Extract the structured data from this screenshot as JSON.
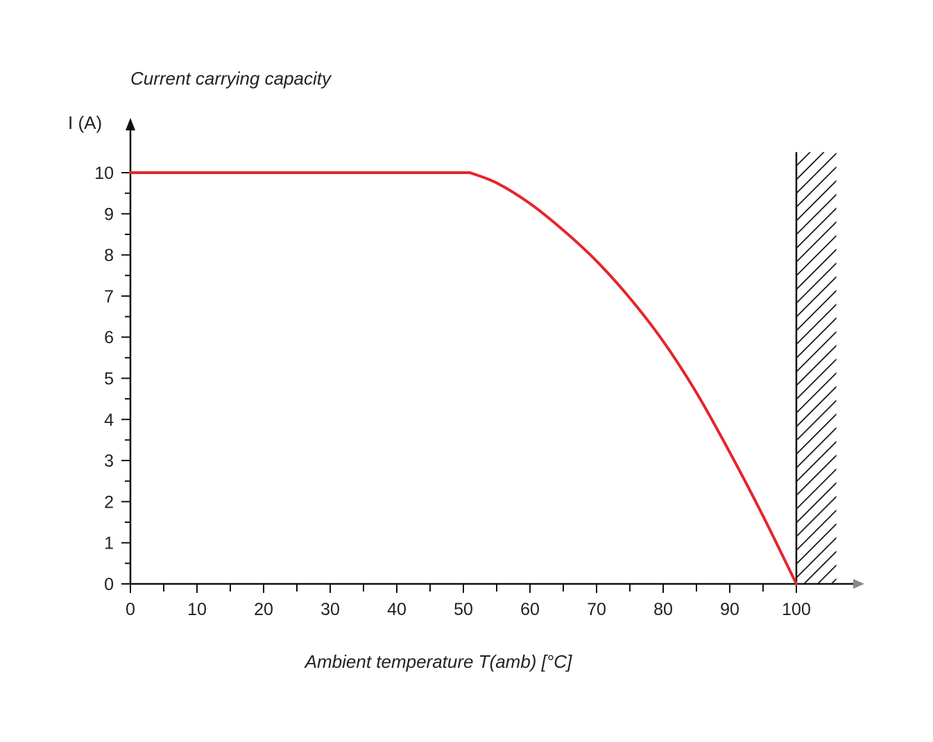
{
  "chart_data": {
    "type": "line",
    "title": "Current carrying capacity",
    "ylabel": "I (A)",
    "xlabel": "Ambient temperature T(amb) [°C]",
    "xlim": [
      0,
      110
    ],
    "ylim": [
      0,
      11
    ],
    "x_ticks": [
      0,
      10,
      20,
      30,
      40,
      50,
      60,
      70,
      80,
      90,
      100
    ],
    "x_minor_ticks": [
      5,
      15,
      25,
      35,
      45,
      55,
      65,
      75,
      85,
      95
    ],
    "y_ticks": [
      0,
      1,
      2,
      3,
      4,
      5,
      6,
      7,
      8,
      9,
      10
    ],
    "y_minor_ticks": [
      0.5,
      1.5,
      2.5,
      3.5,
      4.5,
      5.5,
      6.5,
      7.5,
      8.5,
      9.5
    ],
    "series": [
      {
        "color": "#e3262b",
        "x": [
          0,
          51,
          55,
          60,
          65,
          70,
          75,
          80,
          85,
          90,
          95,
          100
        ],
        "y": [
          10,
          10,
          9.75,
          9.25,
          8.6,
          7.85,
          6.95,
          5.9,
          4.65,
          3.2,
          1.65,
          0
        ]
      }
    ],
    "hatched_region": {
      "x_from": 100,
      "x_to": 106,
      "y_to": 10.5
    },
    "grid": false
  }
}
